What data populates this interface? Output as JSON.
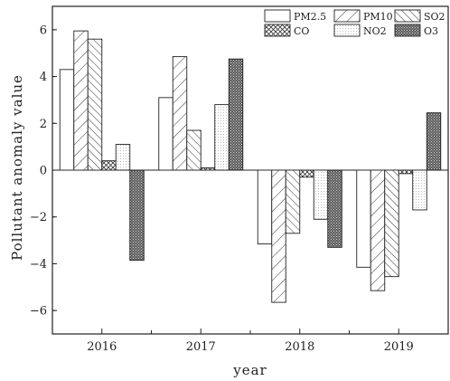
{
  "chart_data": {
    "type": "bar",
    "title": "",
    "xlabel": "year",
    "ylabel": "Pollutant anomaly value",
    "categories": [
      "2016",
      "2017",
      "2018",
      "2019"
    ],
    "ylim": [
      -7,
      7
    ],
    "yticks": [
      -6,
      -4,
      -2,
      0,
      2,
      4,
      6
    ],
    "grid": false,
    "legend_position": "top-right",
    "series": [
      {
        "name": "PM2.5",
        "pattern": "blank",
        "values": [
          4.3,
          3.1,
          -3.15,
          -4.15
        ]
      },
      {
        "name": "PM10",
        "pattern": "wide-diagonal",
        "values": [
          5.95,
          4.85,
          -5.65,
          -5.15
        ]
      },
      {
        "name": "SO2",
        "pattern": "back-diagonal",
        "values": [
          5.6,
          1.7,
          -2.7,
          -4.55
        ]
      },
      {
        "name": "CO",
        "pattern": "crosshatch",
        "values": [
          0.4,
          0.1,
          -0.3,
          -0.15
        ]
      },
      {
        "name": "NO2",
        "pattern": "fine-dots",
        "values": [
          1.1,
          2.8,
          -2.1,
          -1.7
        ]
      },
      {
        "name": "O3",
        "pattern": "dense-dots",
        "values": [
          -3.85,
          4.75,
          -3.3,
          2.45
        ]
      }
    ]
  }
}
